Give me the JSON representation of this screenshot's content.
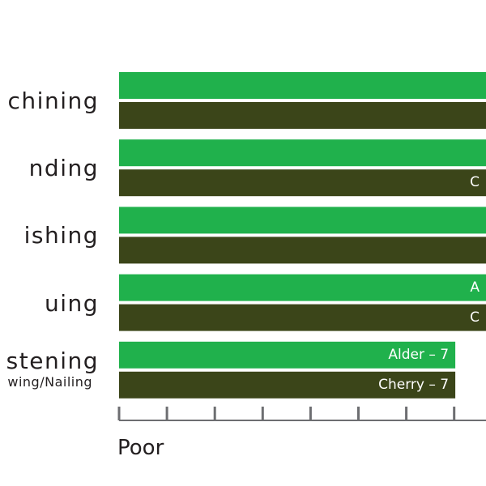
{
  "chart_data": {
    "type": "bar",
    "orientation": "horizontal",
    "categories": [
      "Machining",
      "Sanding",
      "Polishing",
      "Gluing",
      "Fastening"
    ],
    "category_display": [
      "chining",
      "nding",
      "ishing",
      "uing",
      "stening"
    ],
    "category_sub": [
      "",
      "",
      "",
      "",
      "wing/Nailing"
    ],
    "series": [
      {
        "color": "#20b14c",
        "values": [
          null,
          null,
          null,
          null,
          7
        ],
        "labels": [
          "",
          "",
          "",
          "A",
          "Alder – 7"
        ]
      },
      {
        "color": "#3b4519",
        "values": [
          null,
          null,
          null,
          null,
          7
        ],
        "labels": [
          "",
          "C",
          "",
          "C",
          "Cherry – 7"
        ]
      }
    ],
    "axis": {
      "min_label": "Poor",
      "tick_count": 9
    }
  }
}
